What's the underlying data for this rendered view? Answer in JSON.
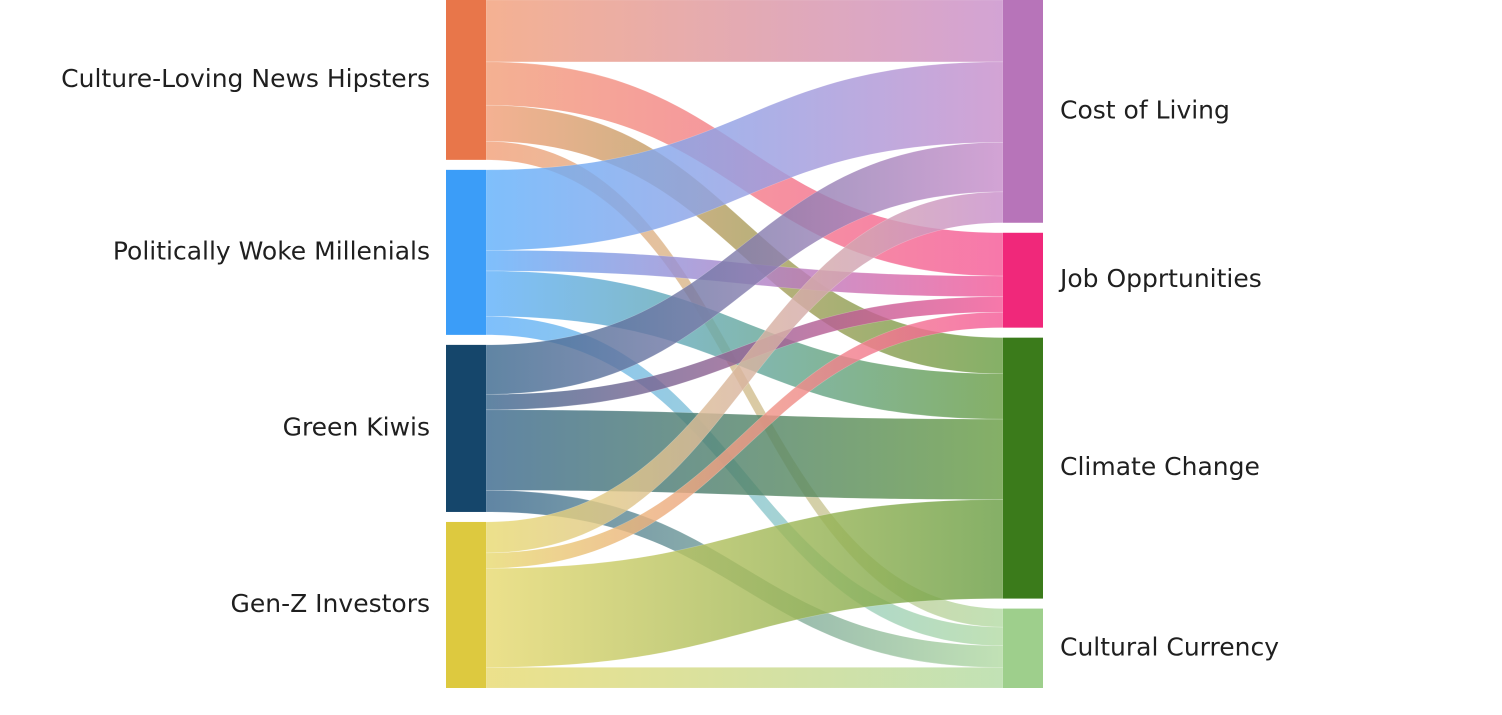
{
  "chart_data": {
    "type": "sankey",
    "title": "",
    "sources": [
      {
        "name": "Culture-Loving News Hipsters",
        "color": "#E8764A",
        "color_light": "#F2A07A"
      },
      {
        "name": "Politically Woke Millenials",
        "color": "#3B9DF8",
        "color_light": "#62B1FB"
      },
      {
        "name": "Green Kiwis",
        "color": "#15466B",
        "color_light": "#3D6A8F"
      },
      {
        "name": "Gen-Z Investors",
        "color": "#DDC93F",
        "color_light": "#E8DA72"
      }
    ],
    "targets": [
      {
        "name": "Cost of Living",
        "color": "#B774B9",
        "color_light": "#C98FCB"
      },
      {
        "name": "Job Opprtunities",
        "color": "#F0287A",
        "color_light": "#F55A98"
      },
      {
        "name": "Climate Change",
        "color": "#3B7B1B",
        "color_light": "#6A9E45"
      },
      {
        "name": "Cultural Currency",
        "color": "#9ECF8C",
        "color_light": "#B4DBA5"
      }
    ],
    "links": [
      {
        "source": "Culture-Loving News Hipsters",
        "target": "Cost of Living",
        "value": 60
      },
      {
        "source": "Culture-Loving News Hipsters",
        "target": "Job Opprtunities",
        "value": 42
      },
      {
        "source": "Culture-Loving News Hipsters",
        "target": "Climate Change",
        "value": 35
      },
      {
        "source": "Culture-Loving News Hipsters",
        "target": "Cultural Currency",
        "value": 18
      },
      {
        "source": "Politically Woke Millenials",
        "target": "Cost of Living",
        "value": 78
      },
      {
        "source": "Politically Woke Millenials",
        "target": "Job Opprtunities",
        "value": 20
      },
      {
        "source": "Politically Woke Millenials",
        "target": "Climate Change",
        "value": 44
      },
      {
        "source": "Politically Woke Millenials",
        "target": "Cultural Currency",
        "value": 18
      },
      {
        "source": "Green Kiwis",
        "target": "Cost of Living",
        "value": 48
      },
      {
        "source": "Green Kiwis",
        "target": "Job Opprtunities",
        "value": 15
      },
      {
        "source": "Green Kiwis",
        "target": "Climate Change",
        "value": 78
      },
      {
        "source": "Green Kiwis",
        "target": "Cultural Currency",
        "value": 21
      },
      {
        "source": "Gen-Z Investors",
        "target": "Cost of Living",
        "value": 30
      },
      {
        "source": "Gen-Z Investors",
        "target": "Job Opprtunities",
        "value": 15
      },
      {
        "source": "Gen-Z Investors",
        "target": "Climate Change",
        "value": 96
      },
      {
        "source": "Gen-Z Investors",
        "target": "Cultural Currency",
        "value": 20
      }
    ]
  }
}
